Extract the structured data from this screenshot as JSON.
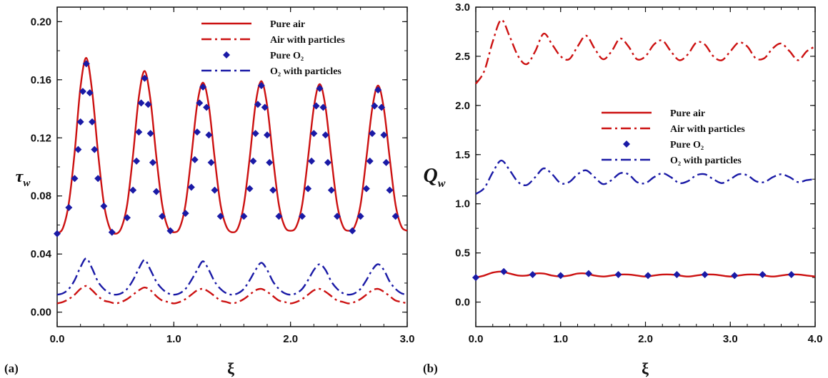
{
  "colors": {
    "red": "#cc1111",
    "blue": "#1a1aa6",
    "axis": "#111111"
  },
  "chart_data": [
    {
      "panel": "(a)",
      "type": "line",
      "xlabel": "ξ",
      "ylabel": "τ",
      "ylabel_sub": "w",
      "xlim": [
        0.0,
        3.0
      ],
      "ylim": [
        -0.01,
        0.21
      ],
      "xticks": [
        "0.0",
        "1.0",
        "2.0",
        "3.0"
      ],
      "xtick_values": [
        0,
        1,
        2,
        3
      ],
      "yticks": [
        "0.00",
        "0.04",
        "0.08",
        "0.12",
        "0.16",
        "0.20"
      ],
      "ytick_values": [
        0,
        0.04,
        0.08,
        0.12,
        0.16,
        0.2
      ],
      "legend_position": "top-right",
      "series": [
        {
          "name": "Pure air",
          "style": "solid",
          "color": "#cc1111",
          "x": [
            0,
            0.05,
            0.1,
            0.15,
            0.2,
            0.25,
            0.3,
            0.35,
            0.4,
            0.45,
            0.5,
            0.55,
            0.6,
            0.65,
            0.7,
            0.75,
            0.8,
            0.85,
            0.9,
            0.95,
            1.0,
            1.05,
            1.1,
            1.15,
            1.2,
            1.25,
            1.3,
            1.35,
            1.4,
            1.45,
            1.5,
            1.55,
            1.6,
            1.65,
            1.7,
            1.75,
            1.8,
            1.85,
            1.9,
            1.95,
            2.0,
            2.05,
            2.1,
            2.15,
            2.2,
            2.25,
            2.3,
            2.35,
            2.4,
            2.45,
            2.5,
            2.55,
            2.6,
            2.65,
            2.7,
            2.75,
            2.8,
            2.85,
            2.9,
            2.95,
            3.0
          ],
          "y": [
            0.054,
            0.058,
            0.075,
            0.11,
            0.155,
            0.175,
            0.152,
            0.11,
            0.075,
            0.058,
            0.054,
            0.058,
            0.074,
            0.108,
            0.148,
            0.166,
            0.146,
            0.107,
            0.074,
            0.058,
            0.055,
            0.058,
            0.074,
            0.107,
            0.143,
            0.158,
            0.142,
            0.106,
            0.074,
            0.059,
            0.055,
            0.058,
            0.074,
            0.106,
            0.143,
            0.159,
            0.142,
            0.106,
            0.074,
            0.059,
            0.056,
            0.059,
            0.074,
            0.106,
            0.141,
            0.157,
            0.141,
            0.106,
            0.074,
            0.059,
            0.056,
            0.059,
            0.074,
            0.106,
            0.14,
            0.156,
            0.14,
            0.106,
            0.074,
            0.059,
            0.056
          ]
        },
        {
          "name": "Air with particles",
          "style": "dashdot",
          "color": "#cc1111",
          "x": [
            0,
            0.05,
            0.1,
            0.15,
            0.2,
            0.25,
            0.3,
            0.35,
            0.4,
            0.45,
            0.5,
            0.55,
            0.6,
            0.65,
            0.7,
            0.75,
            0.8,
            0.85,
            0.9,
            0.95,
            1.0,
            1.05,
            1.1,
            1.15,
            1.2,
            1.25,
            1.3,
            1.35,
            1.4,
            1.45,
            1.5,
            1.55,
            1.6,
            1.65,
            1.7,
            1.75,
            1.8,
            1.85,
            1.9,
            1.95,
            2.0,
            2.05,
            2.1,
            2.15,
            2.2,
            2.25,
            2.3,
            2.35,
            2.4,
            2.45,
            2.5,
            2.55,
            2.6,
            2.65,
            2.7,
            2.75,
            2.8,
            2.85,
            2.9,
            2.95,
            3.0
          ],
          "y": [
            0.006,
            0.007,
            0.009,
            0.012,
            0.016,
            0.018,
            0.015,
            0.011,
            0.008,
            0.007,
            0.006,
            0.007,
            0.009,
            0.012,
            0.015,
            0.017,
            0.015,
            0.011,
            0.008,
            0.007,
            0.006,
            0.007,
            0.009,
            0.012,
            0.015,
            0.016,
            0.014,
            0.011,
            0.008,
            0.007,
            0.006,
            0.007,
            0.009,
            0.012,
            0.015,
            0.016,
            0.014,
            0.011,
            0.008,
            0.007,
            0.006,
            0.007,
            0.009,
            0.012,
            0.015,
            0.016,
            0.014,
            0.011,
            0.008,
            0.007,
            0.006,
            0.007,
            0.009,
            0.012,
            0.015,
            0.016,
            0.014,
            0.011,
            0.008,
            0.007,
            0.006
          ]
        },
        {
          "name": "Pure O₂",
          "style": "diamond",
          "color": "#1a1aa6",
          "x": [
            0.0,
            0.1,
            0.15,
            0.18,
            0.2,
            0.22,
            0.25,
            0.28,
            0.3,
            0.32,
            0.35,
            0.4,
            0.47,
            0.6,
            0.65,
            0.68,
            0.7,
            0.72,
            0.75,
            0.78,
            0.8,
            0.82,
            0.85,
            0.9,
            0.97,
            1.1,
            1.15,
            1.18,
            1.2,
            1.22,
            1.25,
            1.28,
            1.3,
            1.32,
            1.35,
            1.4,
            1.6,
            1.65,
            1.68,
            1.7,
            1.72,
            1.75,
            1.78,
            1.8,
            1.82,
            1.85,
            1.9,
            2.1,
            2.15,
            2.18,
            2.2,
            2.22,
            2.25,
            2.28,
            2.3,
            2.32,
            2.35,
            2.4,
            2.53,
            2.6,
            2.65,
            2.68,
            2.7,
            2.72,
            2.75,
            2.78,
            2.8,
            2.82,
            2.85,
            2.9
          ],
          "y": [
            0.054,
            0.072,
            0.092,
            0.112,
            0.131,
            0.152,
            0.171,
            0.151,
            0.131,
            0.112,
            0.092,
            0.073,
            0.055,
            0.065,
            0.084,
            0.104,
            0.124,
            0.144,
            0.161,
            0.143,
            0.123,
            0.103,
            0.083,
            0.066,
            0.056,
            0.068,
            0.086,
            0.105,
            0.124,
            0.144,
            0.155,
            0.141,
            0.122,
            0.103,
            0.084,
            0.066,
            0.066,
            0.085,
            0.104,
            0.123,
            0.143,
            0.156,
            0.141,
            0.122,
            0.103,
            0.084,
            0.066,
            0.066,
            0.085,
            0.104,
            0.123,
            0.142,
            0.154,
            0.141,
            0.122,
            0.103,
            0.084,
            0.066,
            0.056,
            0.066,
            0.085,
            0.104,
            0.123,
            0.142,
            0.153,
            0.141,
            0.122,
            0.103,
            0.084,
            0.066
          ]
        },
        {
          "name": "O₂ with particles",
          "style": "dashdot",
          "color": "#1a1aa6",
          "x": [
            0,
            0.05,
            0.1,
            0.15,
            0.2,
            0.25,
            0.3,
            0.35,
            0.4,
            0.45,
            0.5,
            0.55,
            0.6,
            0.65,
            0.7,
            0.75,
            0.8,
            0.85,
            0.9,
            0.95,
            1.0,
            1.05,
            1.1,
            1.15,
            1.2,
            1.25,
            1.3,
            1.35,
            1.4,
            1.45,
            1.5,
            1.55,
            1.6,
            1.65,
            1.7,
            1.75,
            1.8,
            1.85,
            1.9,
            1.95,
            2.0,
            2.05,
            2.1,
            2.15,
            2.2,
            2.25,
            2.3,
            2.35,
            2.4,
            2.45,
            2.5,
            2.55,
            2.6,
            2.65,
            2.7,
            2.75,
            2.8,
            2.85,
            2.9,
            2.95,
            3.0
          ],
          "y": [
            0.012,
            0.013,
            0.016,
            0.022,
            0.031,
            0.037,
            0.03,
            0.021,
            0.016,
            0.013,
            0.012,
            0.013,
            0.016,
            0.022,
            0.03,
            0.036,
            0.029,
            0.021,
            0.016,
            0.013,
            0.012,
            0.013,
            0.016,
            0.022,
            0.029,
            0.035,
            0.029,
            0.021,
            0.016,
            0.013,
            0.012,
            0.013,
            0.016,
            0.022,
            0.029,
            0.034,
            0.029,
            0.021,
            0.016,
            0.013,
            0.012,
            0.013,
            0.016,
            0.022,
            0.029,
            0.033,
            0.029,
            0.021,
            0.016,
            0.013,
            0.012,
            0.013,
            0.016,
            0.022,
            0.029,
            0.033,
            0.029,
            0.021,
            0.016,
            0.013,
            0.012
          ]
        }
      ]
    },
    {
      "panel": "(b)",
      "type": "line",
      "xlabel": "ξ",
      "ylabel": "Q",
      "ylabel_sub": "w",
      "xlim": [
        0.0,
        4.0
      ],
      "ylim": [
        -0.25,
        3.0
      ],
      "xticks": [
        "0.0",
        "1.0",
        "2.0",
        "3.0",
        "4.0"
      ],
      "xtick_values": [
        0,
        1,
        2,
        3,
        4
      ],
      "yticks": [
        "0.0",
        "0.5",
        "1.0",
        "1.5",
        "2.0",
        "2.5",
        "3.0"
      ],
      "ytick_values": [
        0,
        0.5,
        1,
        1.5,
        2,
        2.5,
        3
      ],
      "legend_position": "center-right",
      "series": [
        {
          "name": "Pure air",
          "style": "solid",
          "color": "#cc1111",
          "x": [
            0,
            0.1,
            0.2,
            0.3,
            0.4,
            0.5,
            0.6,
            0.7,
            0.8,
            0.9,
            1.0,
            1.1,
            1.2,
            1.3,
            1.4,
            1.5,
            1.6,
            1.7,
            1.8,
            1.9,
            2.0,
            2.1,
            2.2,
            2.3,
            2.4,
            2.5,
            2.6,
            2.7,
            2.8,
            2.9,
            3.0,
            3.1,
            3.2,
            3.3,
            3.4,
            3.5,
            3.6,
            3.7,
            3.8,
            3.9,
            4.0
          ],
          "y": [
            0.25,
            0.27,
            0.3,
            0.31,
            0.29,
            0.27,
            0.27,
            0.29,
            0.29,
            0.27,
            0.26,
            0.27,
            0.29,
            0.29,
            0.27,
            0.26,
            0.27,
            0.28,
            0.28,
            0.27,
            0.26,
            0.27,
            0.28,
            0.28,
            0.27,
            0.26,
            0.27,
            0.28,
            0.28,
            0.27,
            0.26,
            0.27,
            0.28,
            0.28,
            0.27,
            0.26,
            0.27,
            0.28,
            0.28,
            0.27,
            0.26
          ]
        },
        {
          "name": "Air with particles",
          "style": "dashdot",
          "color": "#cc1111",
          "x": [
            0,
            0.1,
            0.2,
            0.3,
            0.4,
            0.5,
            0.6,
            0.7,
            0.8,
            0.9,
            1.0,
            1.1,
            1.2,
            1.3,
            1.4,
            1.5,
            1.6,
            1.7,
            1.8,
            1.9,
            2.0,
            2.1,
            2.2,
            2.3,
            2.4,
            2.5,
            2.6,
            2.7,
            2.8,
            2.9,
            3.0,
            3.1,
            3.2,
            3.3,
            3.4,
            3.5,
            3.6,
            3.7,
            3.8,
            3.9,
            4.0
          ],
          "y": [
            2.22,
            2.35,
            2.65,
            2.87,
            2.7,
            2.5,
            2.42,
            2.55,
            2.73,
            2.62,
            2.5,
            2.47,
            2.6,
            2.71,
            2.58,
            2.47,
            2.55,
            2.68,
            2.6,
            2.47,
            2.5,
            2.62,
            2.66,
            2.55,
            2.46,
            2.52,
            2.64,
            2.62,
            2.5,
            2.46,
            2.55,
            2.64,
            2.6,
            2.48,
            2.48,
            2.58,
            2.63,
            2.55,
            2.46,
            2.55,
            2.6
          ]
        },
        {
          "name": "Pure O₂",
          "style": "diamond",
          "color": "#1a1aa6",
          "x": [
            0.0,
            0.33,
            0.67,
            1.0,
            1.33,
            1.68,
            2.03,
            2.37,
            2.7,
            3.05,
            3.38,
            3.72
          ],
          "y": [
            0.25,
            0.31,
            0.28,
            0.27,
            0.29,
            0.28,
            0.27,
            0.28,
            0.28,
            0.27,
            0.28,
            0.28
          ]
        },
        {
          "name": "O₂ with particles",
          "style": "dashdot",
          "color": "#1a1aa6",
          "x": [
            0,
            0.1,
            0.2,
            0.3,
            0.4,
            0.5,
            0.6,
            0.7,
            0.8,
            0.9,
            1.0,
            1.1,
            1.2,
            1.3,
            1.4,
            1.5,
            1.6,
            1.7,
            1.8,
            1.9,
            2.0,
            2.1,
            2.2,
            2.3,
            2.4,
            2.5,
            2.6,
            2.7,
            2.8,
            2.9,
            3.0,
            3.1,
            3.2,
            3.3,
            3.4,
            3.5,
            3.6,
            3.7,
            3.8,
            3.9,
            4.0
          ],
          "y": [
            1.1,
            1.16,
            1.32,
            1.44,
            1.34,
            1.22,
            1.19,
            1.27,
            1.36,
            1.3,
            1.21,
            1.22,
            1.3,
            1.34,
            1.27,
            1.2,
            1.24,
            1.31,
            1.3,
            1.22,
            1.21,
            1.27,
            1.31,
            1.27,
            1.21,
            1.23,
            1.29,
            1.3,
            1.25,
            1.21,
            1.25,
            1.3,
            1.29,
            1.23,
            1.22,
            1.27,
            1.3,
            1.27,
            1.22,
            1.24,
            1.25
          ]
        }
      ]
    }
  ]
}
